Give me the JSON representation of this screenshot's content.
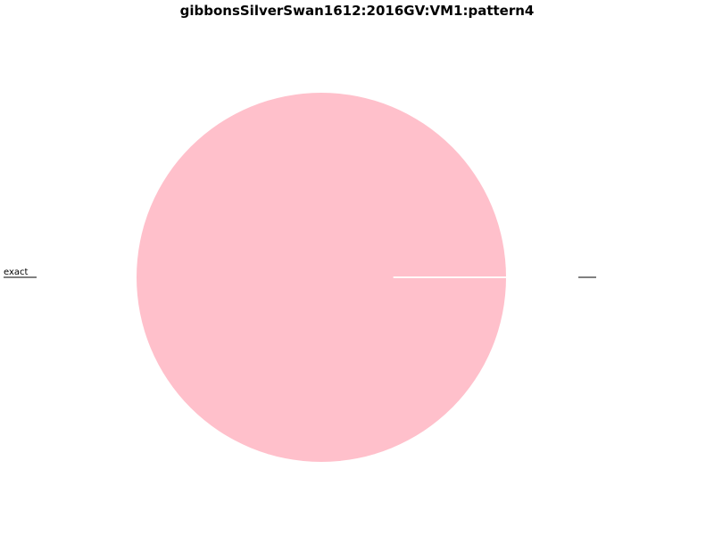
{
  "chart_data": {
    "type": "pie",
    "title": "gibbonsSilverSwan1612:2016GV:VM1:pattern4",
    "slices": [
      {
        "label": "exact",
        "value": 1.0,
        "color": "#ffc0cb"
      },
      {
        "label": "",
        "value": 0.0,
        "color": "#ffc0cb"
      }
    ],
    "edge_color": "#ffffff",
    "legend": "none"
  }
}
